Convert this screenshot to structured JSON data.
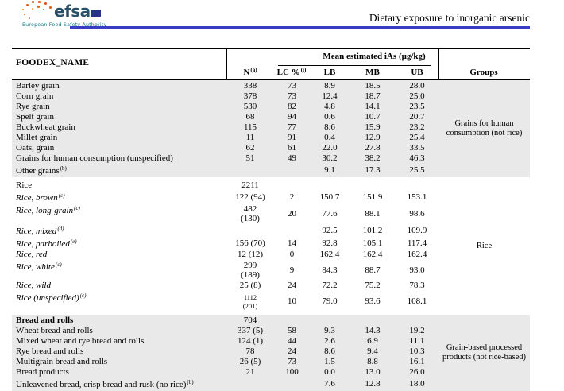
{
  "page": {
    "title_right": "Dietary exposure to inorganic arsenic"
  },
  "logo": {
    "wordmark": "efsa",
    "tagline": "European Food Safety Authority"
  },
  "colors": {
    "rule_blue": "#383dc4",
    "row_shade": "#e9e9e9",
    "logo_wordmark": "#2a5068",
    "logo_tagline": "#16798a",
    "dot_orange": "#e2621b",
    "eu_flag_blue": "#27348b"
  },
  "table": {
    "headers": {
      "name": "FOODEX_NAME",
      "n": "N",
      "n_sup": "(a)",
      "lc": "LC %",
      "lc_sup": "(i)",
      "ias_span": "Mean estimated iAs (μg/kg)",
      "lb": "LB",
      "mb": "MB",
      "ub": "UB",
      "groups": "Groups"
    },
    "sections": [
      {
        "shaded": true,
        "group": "Grains for human consumption (not rice)",
        "rows": [
          {
            "name": "Barley grain",
            "n": "338",
            "lc": "73",
            "lb": "8.9",
            "mb": "18.5",
            "ub": "28.0"
          },
          {
            "name": "Corn grain",
            "n": "378",
            "lc": "73",
            "lb": "12.4",
            "mb": "18.7",
            "ub": "25.0"
          },
          {
            "name": "Rye grain",
            "n": "530",
            "lc": "82",
            "lb": "4.8",
            "mb": "14.1",
            "ub": "23.5"
          },
          {
            "name": "Spelt grain",
            "n": "68",
            "lc": "94",
            "lb": "0.6",
            "mb": "10.7",
            "ub": "20.7"
          },
          {
            "name": "Buckwheat grain",
            "n": "115",
            "lc": "77",
            "lb": "8.6",
            "mb": "15.9",
            "ub": "23.2"
          },
          {
            "name": "Millet grain",
            "n": "11",
            "lc": "91",
            "lb": "0.4",
            "mb": "12.9",
            "ub": "25.4"
          },
          {
            "name": "Oats, grain",
            "n": "62",
            "lc": "61",
            "lb": "22.0",
            "mb": "27.8",
            "ub": "33.5"
          },
          {
            "name": "Grains for human consumption (unspecified)",
            "n": "51",
            "lc": "49",
            "lb": "30.2",
            "mb": "38.2",
            "ub": "46.3"
          },
          {
            "name": "Other grains",
            "sup": "(b)",
            "lb": "9.1",
            "mb": "17.3",
            "ub": "25.5"
          }
        ]
      },
      {
        "shaded": false,
        "group": "Rice",
        "rows": [
          {
            "name": "Rice",
            "n": "2211"
          },
          {
            "name": "Rice, brown",
            "sup": "(c)",
            "style": "italic",
            "n": "122 (94)",
            "lc": "2",
            "lb": "150.7",
            "mb": "151.9",
            "ub": "153.1"
          },
          {
            "name": "Rice, long-grain",
            "sup": "(c)",
            "style": "italic",
            "n": "482",
            "n2": "(130)",
            "lc": "20",
            "lb": "77.6",
            "mb": "88.1",
            "ub": "98.6"
          },
          {
            "name": "Rice, mixed",
            "sup": "(d)",
            "style": "italic",
            "lb": "92.5",
            "mb": "101.2",
            "ub": "109.9"
          },
          {
            "name": "Rice, parboiled",
            "sup": "(e)",
            "style": "italic",
            "n": "156 (70)",
            "lc": "14",
            "lb": "92.8",
            "mb": "105.1",
            "ub": "117.4"
          },
          {
            "name": "Rice, red",
            "style": "italic",
            "n": "12 (12)",
            "lc": "0",
            "lb": "162.4",
            "mb": "162.4",
            "ub": "162.4"
          },
          {
            "name": "Rice, white",
            "sup": "(c)",
            "style": "italic",
            "n": "299",
            "n2": "(189)",
            "lc": "9",
            "lb": "84.3",
            "mb": "88.7",
            "ub": "93.0"
          },
          {
            "name": "Rice, wild",
            "style": "italic",
            "n": "25 (8)",
            "lc": "24",
            "lb": "72.2",
            "mb": "75.2",
            "ub": "78.3"
          },
          {
            "name": "Rice (unspecified)",
            "sup": "(c)",
            "style": "italic",
            "n": "1112",
            "n2": "(201)",
            "n_small": true,
            "lc": "10",
            "lb": "79.0",
            "mb": "93.6",
            "ub": "108.1"
          }
        ]
      },
      {
        "shaded": true,
        "group": "Grain-based processed products (not rice-based)",
        "rows": [
          {
            "name": "Bread and rolls",
            "style": "bold",
            "n": "704"
          },
          {
            "name": "Wheat bread and rolls",
            "n": "337 (5)",
            "lc": "58",
            "lb": "9.3",
            "mb": "14.3",
            "ub": "19.2"
          },
          {
            "name": "Mixed wheat and rye bread and rolls",
            "n": "124 (1)",
            "lc": "44",
            "lb": "2.6",
            "mb": "6.9",
            "ub": "11.1"
          },
          {
            "name": "Rye bread and rolls",
            "n": "78",
            "lc": "24",
            "lb": "8.6",
            "mb": "9.4",
            "ub": "10.3"
          },
          {
            "name": "Multigrain bread and rolls",
            "n": "26 (5)",
            "lc": "73",
            "lb": "1.5",
            "mb": "8.8",
            "ub": "16.1"
          },
          {
            "name": "Bread products",
            "n": "21",
            "lc": "100",
            "lb": "0.0",
            "mb": "13.0",
            "ub": "26.0"
          },
          {
            "name": "Unleavened bread, crisp bread and rusk (no rice)",
            "sup": "(b)",
            "lb": "7.6",
            "mb": "12.8",
            "ub": "18.0"
          }
        ]
      }
    ]
  }
}
